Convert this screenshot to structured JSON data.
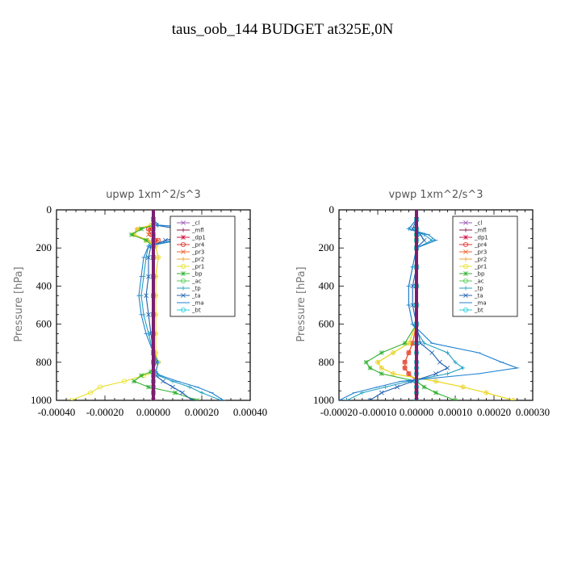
{
  "title": "taus_oob_144  BUDGET at325E,0N",
  "colors": {
    "_cl": "#9b59b6",
    "_mfl": "#8b1a4a",
    "_dp1": "#d01040",
    "_pr4": "#e0302a",
    "_pr3": "#f06030",
    "_pr2": "#f0a030",
    "_pr1": "#e8e020",
    "_bp": "#30b030",
    "_ac": "#50d050",
    "_tp": "#20a0c0",
    "_ta": "#2060b0",
    "_ma": "#2080d0",
    "_bt": "#20d0e0"
  },
  "chart_data": [
    {
      "type": "line",
      "title": "upwp   1xm^2/s^3",
      "ylabel": "Pressure [hPa]",
      "xlabel": "",
      "ylim": [
        0,
        1000
      ],
      "y_inverted": true,
      "xlim": [
        -0.0004,
        0.0004
      ],
      "yticks": [
        0,
        200,
        400,
        600,
        800,
        1000
      ],
      "ytick_labels": [
        "0",
        "200",
        "400",
        "600",
        "800",
        "1000"
      ],
      "xticks": [
        -0.0004,
        -0.0002,
        0.0,
        0.0002,
        0.0004
      ],
      "xtick_labels": [
        "-0.00040",
        "-0.00020",
        "0.00000",
        "0.00020",
        "0.00040"
      ],
      "legend": [
        "_cl",
        "_mfl",
        "_dp1",
        "_pr4",
        "_pr3",
        "_pr2",
        "_pr1",
        "_bp",
        "_ac",
        "_tp",
        "_ta",
        "_ma",
        "_bt"
      ],
      "y": [
        50,
        80,
        100,
        130,
        160,
        190,
        250,
        350,
        450,
        550,
        650,
        750,
        800,
        850,
        870,
        900,
        930,
        960,
        1000
      ],
      "series": [
        {
          "name": "_cl",
          "values": [
            0,
            0,
            0,
            0,
            0,
            0,
            0,
            0,
            0,
            0,
            0,
            0,
            0,
            0,
            0,
            0,
            0,
            0,
            0
          ]
        },
        {
          "name": "_mfl",
          "values": [
            0,
            0,
            0,
            0,
            0,
            0,
            0,
            0,
            0,
            0,
            0,
            0,
            0,
            0,
            0,
            0,
            0,
            0,
            0
          ]
        },
        {
          "name": "_dp1",
          "values": [
            0,
            0,
            -1e-05,
            0,
            1e-05,
            0,
            0,
            0,
            0,
            0,
            0,
            0,
            0,
            0,
            0,
            0,
            0,
            0,
            0
          ]
        },
        {
          "name": "_pr4",
          "values": [
            0,
            0,
            -2e-05,
            -1e-05,
            2e-05,
            0,
            0,
            0,
            0,
            0,
            0,
            0,
            0,
            0,
            0,
            0,
            0,
            0,
            0
          ]
        },
        {
          "name": "_pr3",
          "values": [
            0,
            0,
            -2e-05,
            -2e-05,
            2e-05,
            0,
            0,
            0,
            0,
            0,
            0,
            0,
            0,
            0,
            0,
            0,
            0,
            0,
            0
          ]
        },
        {
          "name": "_pr2",
          "values": [
            0,
            -1e-05,
            -7e-05,
            -8e-05,
            -2e-05,
            1e-05,
            2e-05,
            1e-05,
            1e-05,
            1e-05,
            1e-05,
            1e-05,
            1e-05,
            0,
            0,
            0,
            0,
            0,
            0
          ]
        },
        {
          "name": "_pr1",
          "values": [
            0,
            -1e-05,
            -6e-05,
            -8e-05,
            -3e-05,
            1e-05,
            2e-05,
            1e-05,
            1e-05,
            1e-05,
            1e-05,
            1e-05,
            2e-05,
            1e-05,
            -4e-05,
            -0.00012,
            -0.00022,
            -0.00026,
            -0.00034
          ]
        },
        {
          "name": "_bp",
          "values": [
            0,
            0,
            -5e-05,
            -9e-05,
            -3e-05,
            0,
            0,
            0,
            0,
            0,
            0,
            0,
            1e-05,
            -1e-05,
            -5e-05,
            -8e-05,
            -2e-05,
            9e-05,
            0.00018
          ]
        },
        {
          "name": "_ac",
          "values": [
            0,
            0,
            0,
            0,
            0,
            0,
            0,
            0,
            0,
            0,
            0,
            0,
            0,
            0,
            0,
            0,
            0,
            0,
            0
          ]
        },
        {
          "name": "_tp",
          "values": [
            0,
            2e-05,
            0.0002,
            0.0002,
            8e-05,
            -2e-05,
            -3e-05,
            -4e-05,
            -5e-05,
            -4e-05,
            -2e-05,
            0,
            2e-05,
            1e-05,
            2e-05,
            8e-05,
            0.00015,
            0.0002,
            0.00028
          ]
        },
        {
          "name": "_ta",
          "values": [
            0,
            1e-05,
            0.0001,
            0.00015,
            5e-05,
            -1e-05,
            -2e-05,
            -2e-05,
            -3e-05,
            -2e-05,
            -1e-05,
            0,
            1e-05,
            0,
            1e-05,
            4e-05,
            8e-05,
            0.00012,
            0.00016
          ]
        },
        {
          "name": "_ma",
          "values": [
            0,
            2e-05,
            0.00025,
            0.00032,
            0.0001,
            -2e-05,
            -4e-05,
            -5e-05,
            -6e-05,
            -5e-05,
            -3e-05,
            0,
            2e-05,
            1e-05,
            3e-05,
            0.0001,
            0.00018,
            0.00024,
            0.00029
          ]
        },
        {
          "name": "_bt",
          "values": [
            0,
            0,
            0,
            0,
            0,
            0,
            0,
            0,
            0,
            0,
            0,
            0,
            0,
            0,
            0,
            0,
            0,
            0,
            0
          ]
        }
      ]
    },
    {
      "type": "line",
      "title": "vpwp   1xm^2/s^3",
      "ylabel": "Pressure [hPa]",
      "xlabel": "",
      "ylim": [
        0,
        1000
      ],
      "y_inverted": true,
      "xlim": [
        -0.0002,
        0.0003
      ],
      "yticks": [
        0,
        200,
        400,
        600,
        800,
        1000
      ],
      "ytick_labels": [
        "0",
        "200",
        "400",
        "600",
        "800",
        "1000"
      ],
      "xticks": [
        -0.0002,
        -0.0001,
        0.0,
        0.0001,
        0.0002,
        0.0003
      ],
      "xtick_labels": [
        "-0.00020",
        "-0.00010",
        "0.00000",
        "0.00010",
        "0.00020",
        "0.00030"
      ],
      "legend": [
        "_cl",
        "_mfl",
        "_dp1",
        "_pr4",
        "_pr3",
        "_pr2",
        "_pr1",
        "_bp",
        "_ac",
        "_tp",
        "_ta",
        "_ma",
        "_bt"
      ],
      "y": [
        50,
        100,
        130,
        160,
        200,
        300,
        400,
        500,
        600,
        700,
        750,
        800,
        830,
        860,
        900,
        930,
        960,
        1000
      ],
      "series": [
        {
          "name": "_cl",
          "values": [
            0,
            0,
            0,
            0,
            0,
            0,
            0,
            0,
            0,
            0,
            0,
            0,
            0,
            0,
            0,
            0,
            0,
            0
          ]
        },
        {
          "name": "_mfl",
          "values": [
            0,
            0,
            0,
            0,
            0,
            0,
            0,
            0,
            0,
            0,
            0,
            0,
            0,
            0,
            0,
            0,
            0,
            0
          ]
        },
        {
          "name": "_dp1",
          "values": [
            0,
            0,
            0,
            0,
            0,
            0,
            0,
            0,
            0,
            -1e-05,
            -2e-05,
            -3e-05,
            -3e-05,
            -2e-05,
            0,
            0,
            0,
            0
          ]
        },
        {
          "name": "_pr4",
          "values": [
            0,
            0,
            0,
            0,
            0,
            0,
            0,
            0,
            0,
            -1e-05,
            -2e-05,
            -3e-05,
            -3e-05,
            -2e-05,
            0,
            0,
            0,
            0
          ]
        },
        {
          "name": "_pr3",
          "values": [
            0,
            0,
            0,
            0,
            0,
            0,
            0,
            0,
            0,
            -1e-05,
            -2e-05,
            -3e-05,
            -3e-05,
            -2e-05,
            0,
            0,
            0,
            0
          ]
        },
        {
          "name": "_pr2",
          "values": [
            0,
            0,
            0,
            0,
            0,
            0,
            0,
            0,
            0,
            -2e-05,
            -6e-05,
            -0.0001,
            -9e-05,
            -6e-05,
            5e-05,
            0.00012,
            0.00018,
            0.00025
          ]
        },
        {
          "name": "_pr1",
          "values": [
            0,
            0,
            0,
            0,
            0,
            0,
            0,
            0,
            0,
            -2e-05,
            -6e-05,
            -0.0001,
            -9e-05,
            -6e-05,
            5e-05,
            0.00012,
            0.00018,
            0.00025
          ]
        },
        {
          "name": "_bp",
          "values": [
            0,
            0,
            0,
            0,
            0,
            0,
            0,
            0,
            0,
            -3e-05,
            -9e-05,
            -0.00013,
            -0.00012,
            -9e-05,
            0,
            2e-05,
            5e-05,
            0.0001
          ]
        },
        {
          "name": "_ac",
          "values": [
            0,
            0,
            0,
            0,
            0,
            0,
            0,
            0,
            0,
            0,
            0,
            0,
            0,
            0,
            0,
            0,
            0,
            0
          ]
        },
        {
          "name": "_tp",
          "values": [
            0,
            -2e-05,
            2e-05,
            4e-05,
            0,
            -1e-05,
            -2e-05,
            -2e-05,
            -1e-05,
            2e-05,
            8e-05,
            0.0001,
            0.00012,
            8e-05,
            -2e-05,
            -8e-05,
            -0.00014,
            -0.00018
          ]
        },
        {
          "name": "_ta",
          "values": [
            0,
            -1e-05,
            1e-05,
            2e-05,
            0,
            0,
            -1e-05,
            -1e-05,
            0,
            1e-05,
            4e-05,
            6e-05,
            8e-05,
            5e-05,
            -1e-05,
            -5e-05,
            -9e-05,
            -0.00012
          ]
        },
        {
          "name": "_ma",
          "values": [
            0,
            -2e-05,
            3e-05,
            5e-05,
            0,
            -1e-05,
            -2e-05,
            -2e-05,
            -1e-05,
            4e-05,
            0.00016,
            0.00022,
            0.00026,
            0.00016,
            -4e-05,
            -0.0001,
            -0.00016,
            -0.0002
          ]
        },
        {
          "name": "_bt",
          "values": [
            0,
            0,
            0,
            0,
            0,
            0,
            0,
            0,
            0,
            0,
            0,
            0,
            0,
            0,
            0,
            0,
            0,
            0
          ]
        }
      ]
    }
  ]
}
